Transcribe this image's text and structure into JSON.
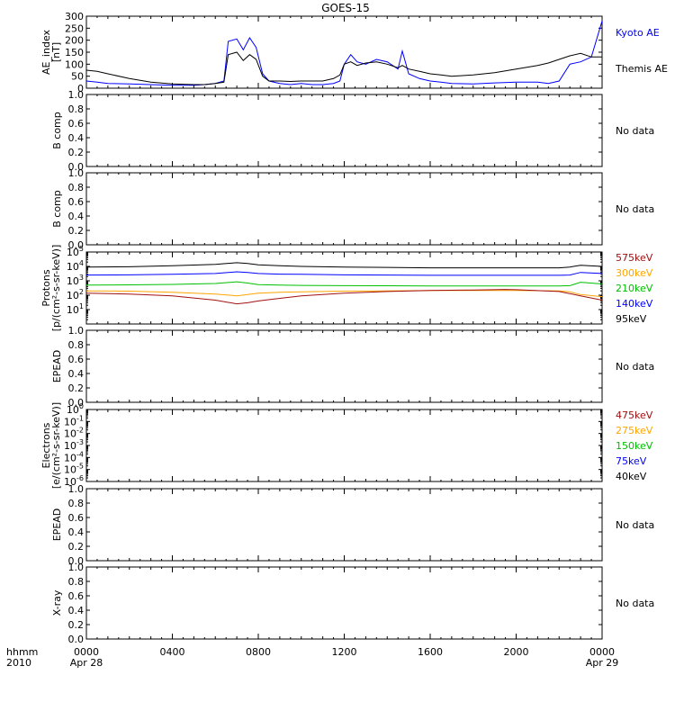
{
  "title": "GOES-15",
  "time_axis": {
    "row1_label": "hhmm",
    "row2_label": "2010",
    "ticks": [
      {
        "label": "0000",
        "date": "Apr 28",
        "hour": 0
      },
      {
        "label": "0400",
        "date": "",
        "hour": 4
      },
      {
        "label": "0800",
        "date": "",
        "hour": 8
      },
      {
        "label": "1200",
        "date": "",
        "hour": 12
      },
      {
        "label": "1600",
        "date": "",
        "hour": 16
      },
      {
        "label": "2000",
        "date": "",
        "hour": 20
      },
      {
        "label": "0000",
        "date": "Apr 29",
        "hour": 24
      }
    ]
  },
  "panels": [
    {
      "id": "ae",
      "ylabel": [
        "AE_index",
        "[nT]"
      ],
      "right": [
        {
          "text": "Kyoto AE",
          "color": "#0000ff"
        },
        {
          "text": "Themis AE",
          "color": "#000000"
        }
      ]
    },
    {
      "id": "b1",
      "ylabel": [
        "B comp"
      ],
      "right": [
        {
          "text": "No data",
          "color": "#000000"
        }
      ]
    },
    {
      "id": "b2",
      "ylabel": [
        "B comp"
      ],
      "right": [
        {
          "text": "No data",
          "color": "#000000"
        }
      ]
    },
    {
      "id": "protons",
      "ylabel": [
        "Protons",
        "[p/(cm²-s-sr-keV)]"
      ],
      "right": [
        {
          "text": "575keV",
          "color": "#a01010"
        },
        {
          "text": "300keV",
          "color": "#ffa500"
        },
        {
          "text": "210keV",
          "color": "#00c000"
        },
        {
          "text": "140keV",
          "color": "#0000ff"
        },
        {
          "text": "95keV",
          "color": "#000000"
        }
      ]
    },
    {
      "id": "epead1",
      "ylabel": [
        "EPEAD"
      ],
      "right": [
        {
          "text": "No data",
          "color": "#000000"
        }
      ]
    },
    {
      "id": "electrons",
      "ylabel": [
        "Electrons",
        "[e/(cm²-s-sr-keV)]"
      ],
      "right": [
        {
          "text": "475keV",
          "color": "#a01010"
        },
        {
          "text": "275keV",
          "color": "#ffa500"
        },
        {
          "text": "150keV",
          "color": "#00c000"
        },
        {
          "text": "75keV",
          "color": "#0000ff"
        },
        {
          "text": "40keV",
          "color": "#000000"
        }
      ]
    },
    {
      "id": "epead2",
      "ylabel": [
        "EPEAD"
      ],
      "right": [
        {
          "text": "No data",
          "color": "#000000"
        }
      ]
    },
    {
      "id": "xray",
      "ylabel": [
        "X-ray"
      ],
      "right": [
        {
          "text": "No data",
          "color": "#000000"
        }
      ]
    }
  ],
  "chart_data": [
    {
      "type": "line",
      "panel": "ae",
      "ylim": [
        0,
        300
      ],
      "yticks": [
        "0",
        "50",
        "100",
        "150",
        "200",
        "250",
        "300"
      ],
      "x_unit": "hours from 0000 Apr 28",
      "series": [
        {
          "name": "Kyoto AE",
          "color": "#0000ff",
          "x": [
            0,
            0.5,
            1,
            2,
            3,
            4,
            5,
            5.5,
            6,
            6.4,
            6.6,
            7,
            7.3,
            7.6,
            7.9,
            8.2,
            8.5,
            9,
            9.5,
            10,
            10.5,
            11,
            11.5,
            11.8,
            12,
            12.3,
            12.6,
            13,
            13.5,
            14,
            14.5,
            14.7,
            15,
            15.5,
            16,
            16.5,
            17,
            18,
            19,
            20,
            21,
            21.5,
            22,
            22.5,
            23,
            23.5,
            24
          ],
          "y": [
            30,
            25,
            20,
            18,
            15,
            12,
            12,
            15,
            20,
            30,
            195,
            205,
            160,
            210,
            170,
            60,
            30,
            20,
            15,
            20,
            15,
            15,
            20,
            30,
            100,
            140,
            110,
            100,
            120,
            110,
            80,
            155,
            60,
            40,
            30,
            25,
            20,
            18,
            22,
            25,
            25,
            20,
            30,
            100,
            110,
            130,
            280
          ]
        },
        {
          "name": "Themis AE",
          "color": "#000000",
          "x": [
            0,
            0.5,
            1,
            2,
            3,
            4,
            5,
            5.5,
            6,
            6.4,
            6.6,
            7,
            7.3,
            7.6,
            7.9,
            8.2,
            8.5,
            9,
            9.5,
            10,
            10.5,
            11,
            11.5,
            11.8,
            12,
            12.3,
            12.6,
            13,
            13.5,
            14,
            14.5,
            14.7,
            15,
            15.5,
            16,
            16.5,
            17,
            18,
            19,
            20,
            21,
            21.5,
            22,
            22.5,
            23,
            23.5,
            24
          ],
          "y": [
            75,
            70,
            60,
            40,
            25,
            18,
            15,
            15,
            20,
            25,
            140,
            150,
            115,
            140,
            120,
            50,
            30,
            30,
            28,
            30,
            30,
            30,
            40,
            55,
            100,
            110,
            95,
            105,
            110,
            100,
            85,
            95,
            80,
            70,
            60,
            55,
            50,
            55,
            65,
            80,
            95,
            105,
            120,
            135,
            145,
            130,
            130
          ]
        }
      ]
    },
    {
      "type": "line",
      "panel": "b1",
      "ylim": [
        0,
        1
      ],
      "yticks": [
        "0.0",
        "0.2",
        "0.4",
        "0.6",
        "0.8",
        "1.0"
      ],
      "series": []
    },
    {
      "type": "line",
      "panel": "b2",
      "ylim": [
        0,
        1
      ],
      "yticks": [
        "0.0",
        "0.2",
        "0.4",
        "0.6",
        "0.8",
        "1.0"
      ],
      "series": []
    },
    {
      "type": "line",
      "panel": "protons",
      "yscale": "log",
      "ylim": [
        1,
        100000
      ],
      "yticks": [
        "10^1",
        "10^2",
        "10^3",
        "10^4",
        "10^5"
      ],
      "x_unit": "hours from 0000 Apr 28",
      "series": [
        {
          "name": "95keV",
          "color": "#000000",
          "x": [
            0,
            2,
            4,
            6,
            7,
            7.5,
            8,
            9,
            10,
            12,
            14,
            16,
            18,
            20,
            22,
            22.5,
            23,
            24
          ],
          "y": [
            9000,
            9500,
            11000,
            14000,
            18000,
            16000,
            13000,
            11000,
            10000,
            9000,
            8500,
            8000,
            8000,
            8000,
            8000,
            9000,
            12000,
            10000
          ]
        },
        {
          "name": "140keV",
          "color": "#0000ff",
          "x": [
            0,
            2,
            4,
            6,
            7,
            7.5,
            8,
            9,
            10,
            12,
            14,
            16,
            18,
            20,
            22,
            22.5,
            23,
            24
          ],
          "y": [
            2500,
            2600,
            2800,
            3200,
            4200,
            3800,
            3200,
            2900,
            2800,
            2600,
            2500,
            2400,
            2400,
            2400,
            2400,
            2500,
            3800,
            3200
          ]
        },
        {
          "name": "210keV",
          "color": "#00c000",
          "x": [
            0,
            2,
            4,
            6,
            7,
            7.5,
            8,
            9,
            10,
            12,
            14,
            16,
            18,
            20,
            22,
            22.5,
            23,
            24
          ],
          "y": [
            500,
            520,
            560,
            650,
            850,
            700,
            550,
            500,
            480,
            460,
            450,
            440,
            440,
            440,
            440,
            460,
            800,
            600
          ]
        },
        {
          "name": "300keV",
          "color": "#ffa500",
          "x": [
            0,
            2,
            4,
            6,
            7,
            7.5,
            8,
            9,
            10,
            12,
            14,
            16,
            18,
            20,
            22,
            22.5,
            23,
            24
          ],
          "y": [
            200,
            190,
            160,
            120,
            90,
            110,
            140,
            160,
            170,
            190,
            200,
            210,
            210,
            210,
            200,
            170,
            110,
            80
          ]
        },
        {
          "name": "575keV",
          "color": "#a01010",
          "x": [
            0,
            2,
            4,
            6,
            7,
            7.5,
            8,
            9,
            10,
            12,
            14,
            16,
            18,
            19.5,
            20,
            22,
            23,
            24
          ],
          "y": [
            140,
            120,
            90,
            45,
            25,
            30,
            40,
            60,
            90,
            140,
            180,
            210,
            230,
            250,
            240,
            180,
            90,
            45
          ]
        }
      ]
    },
    {
      "type": "line",
      "panel": "epead1",
      "ylim": [
        0,
        1
      ],
      "yticks": [
        "0.0",
        "0.2",
        "0.4",
        "0.6",
        "0.8",
        "1.0"
      ],
      "series": []
    },
    {
      "type": "line",
      "panel": "electrons",
      "yscale": "log",
      "ylim": [
        1e-06,
        1
      ],
      "yticks": [
        "10^0",
        "10^-1",
        "10^-2",
        "10^-3",
        "10^-4",
        "10^-5",
        "10^-6"
      ],
      "series": []
    },
    {
      "type": "line",
      "panel": "epead2",
      "ylim": [
        0,
        1
      ],
      "yticks": [
        "0.0",
        "0.2",
        "0.4",
        "0.6",
        "0.8",
        "1.0"
      ],
      "series": []
    },
    {
      "type": "line",
      "panel": "xray",
      "ylim": [
        0,
        1
      ],
      "yticks": [
        "0.0",
        "0.2",
        "0.4",
        "0.6",
        "0.8",
        "1.0"
      ],
      "series": []
    }
  ]
}
